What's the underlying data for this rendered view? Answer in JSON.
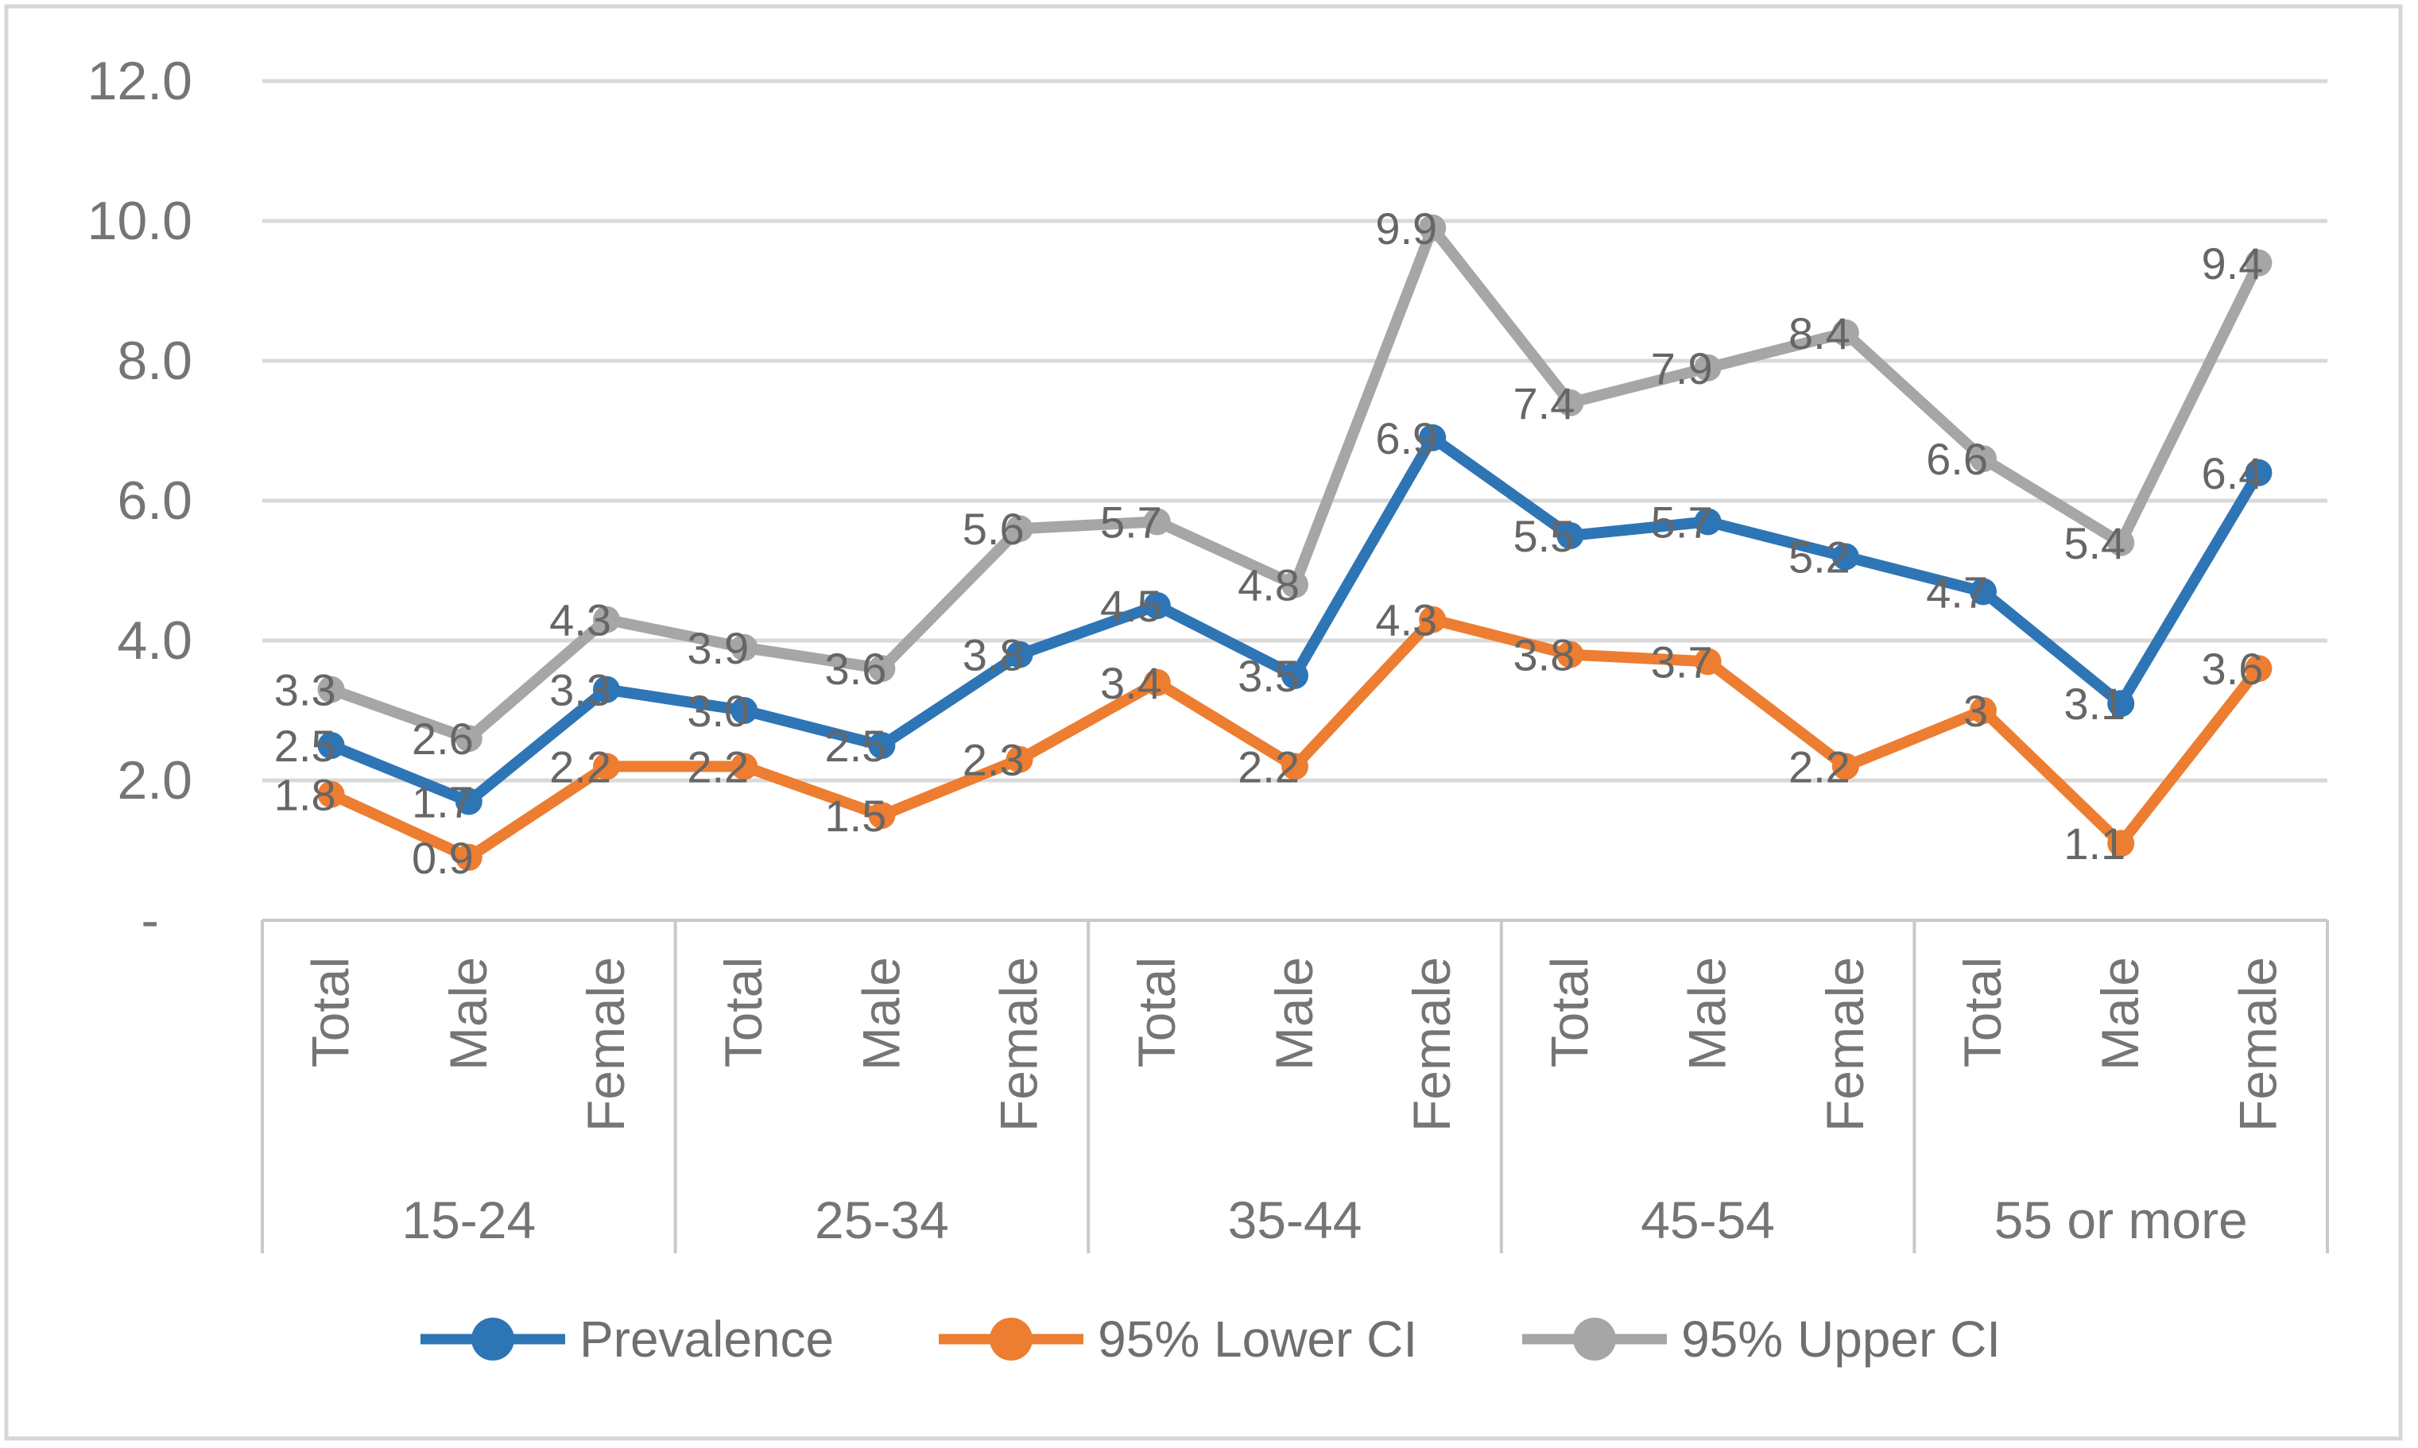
{
  "chart_data": {
    "type": "line",
    "title": "",
    "groups": [
      "15-24",
      "25-34",
      "35-44",
      "45-54",
      "55 or more"
    ],
    "subcategories": [
      "Total",
      "Male",
      "Female"
    ],
    "categories": [
      "Total",
      "Male",
      "Female",
      "Total",
      "Male",
      "Female",
      "Total",
      "Male",
      "Female",
      "Total",
      "Male",
      "Female",
      "Total",
      "Male",
      "Female"
    ],
    "series": [
      {
        "name": "Prevalence",
        "color": "#2E75B6",
        "values": [
          2.5,
          1.7,
          3.3,
          3.0,
          2.5,
          3.8,
          4.5,
          3.5,
          6.9,
          5.5,
          5.7,
          5.2,
          4.7,
          3.1,
          6.4
        ],
        "labels": [
          "2.5",
          "1.7",
          "3.3",
          "3.0",
          "2.5",
          "3.8",
          "4.5",
          "3.5",
          "6.9",
          "5.5",
          "5.7",
          "5.2",
          "4.7",
          "3.1",
          "6.4"
        ]
      },
      {
        "name": "95% Lower CI",
        "color": "#ED7D31",
        "values": [
          1.8,
          0.9,
          2.2,
          2.2,
          1.5,
          2.3,
          3.4,
          2.2,
          4.3,
          3.8,
          3.7,
          2.2,
          3.0,
          1.1,
          3.6
        ],
        "labels": [
          "1.8",
          "0.9",
          "2.2",
          "2.2",
          "1.5",
          "2.3",
          "3.4",
          "2.2",
          "4.3",
          "3.8",
          "3.7",
          "2.2",
          "3",
          "1.1",
          "3.6"
        ]
      },
      {
        "name": "95% Upper CI",
        "color": "#A6A6A6",
        "values": [
          3.3,
          2.6,
          4.3,
          3.9,
          3.6,
          5.6,
          5.7,
          4.8,
          9.9,
          7.4,
          7.9,
          8.4,
          6.6,
          5.4,
          9.4
        ],
        "labels": [
          "3.3",
          "2.6",
          "4.3",
          "3.9",
          "3.6",
          "5.6",
          "5.7",
          "4.8",
          "9.9",
          "7.4",
          "7.9",
          "8.4",
          "6.6",
          "5.4",
          "9.4"
        ]
      }
    ],
    "y_ticks": [
      {
        "value": 12,
        "label": "12.0"
      },
      {
        "value": 10,
        "label": "10.0"
      },
      {
        "value": 8,
        "label": "8.0"
      },
      {
        "value": 6,
        "label": "6.0"
      },
      {
        "value": 4,
        "label": "4.0"
      },
      {
        "value": 2,
        "label": "2.0"
      },
      {
        "value": 0,
        "label": "-"
      }
    ],
    "ylim": [
      0,
      12
    ],
    "grid": true,
    "legend_position": "bottom",
    "colors": {
      "gridline": "#D9D9D9",
      "axis_line": "#C9C9C9",
      "border": "#D6D6D6",
      "tick_text": "#757575",
      "data_label_text": "#666666",
      "legend_text": "#6f6f6f"
    }
  }
}
